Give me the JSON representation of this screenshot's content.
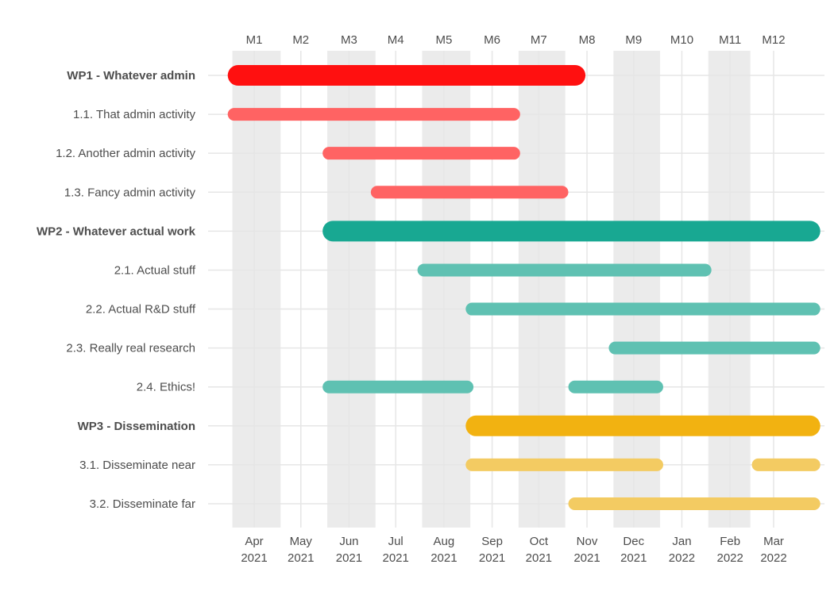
{
  "chart_data": {
    "type": "gantt",
    "title": "",
    "xlabel": "",
    "ylabel": "",
    "x_start": "2021-03-01",
    "x_end": "2022-03-31",
    "months": [
      {
        "label": "M1",
        "center": "2021-04-01",
        "band": [
          "2021-03-18",
          "2021-04-18"
        ]
      },
      {
        "label": "M2",
        "center": "2021-05-01",
        "band": null
      },
      {
        "label": "M3",
        "center": "2021-06-01",
        "band": [
          "2021-05-18",
          "2021-06-18"
        ]
      },
      {
        "label": "M4",
        "center": "2021-07-01",
        "band": null
      },
      {
        "label": "M5",
        "center": "2021-08-01",
        "band": [
          "2021-07-18",
          "2021-08-18"
        ]
      },
      {
        "label": "M6",
        "center": "2021-09-01",
        "band": null
      },
      {
        "label": "M7",
        "center": "2021-10-01",
        "band": [
          "2021-09-18",
          "2021-10-18"
        ]
      },
      {
        "label": "M8",
        "center": "2021-11-01",
        "band": null
      },
      {
        "label": "M9",
        "center": "2021-12-01",
        "band": [
          "2021-11-18",
          "2021-12-18"
        ]
      },
      {
        "label": "M10",
        "center": "2022-01-01",
        "band": null
      },
      {
        "label": "M11",
        "center": "2022-02-01",
        "band": [
          "2022-01-18",
          "2022-02-14"
        ]
      },
      {
        "label": "M12",
        "center": "2022-03-01",
        "band": null
      }
    ],
    "date_ticks": [
      {
        "date": "2021-04-01",
        "month": "Apr",
        "year": "2021"
      },
      {
        "date": "2021-05-01",
        "month": "May",
        "year": "2021"
      },
      {
        "date": "2021-06-01",
        "month": "Jun",
        "year": "2021"
      },
      {
        "date": "2021-07-01",
        "month": "Jul",
        "year": "2021"
      },
      {
        "date": "2021-08-01",
        "month": "Aug",
        "year": "2021"
      },
      {
        "date": "2021-09-01",
        "month": "Sep",
        "year": "2021"
      },
      {
        "date": "2021-10-01",
        "month": "Oct",
        "year": "2021"
      },
      {
        "date": "2021-11-01",
        "month": "Nov",
        "year": "2021"
      },
      {
        "date": "2021-12-01",
        "month": "Dec",
        "year": "2021"
      },
      {
        "date": "2022-01-01",
        "month": "Jan",
        "year": "2022"
      },
      {
        "date": "2022-02-01",
        "month": "Feb",
        "year": "2022"
      },
      {
        "date": "2022-03-01",
        "month": "Mar",
        "year": "2022"
      }
    ],
    "tasks": [
      {
        "label": "WP1 - Whatever admin",
        "wp": true,
        "color": "#ff1010",
        "segments": [
          [
            "2021-03-15",
            "2021-10-31"
          ]
        ]
      },
      {
        "label": "1.1. That admin activity",
        "wp": false,
        "color": "#ff6363",
        "segments": [
          [
            "2021-03-15",
            "2021-09-19"
          ]
        ]
      },
      {
        "label": "1.2. Another admin activity",
        "wp": false,
        "color": "#ff6363",
        "segments": [
          [
            "2021-05-15",
            "2021-09-19"
          ]
        ]
      },
      {
        "label": "1.3. Fancy admin activity",
        "wp": false,
        "color": "#ff6363",
        "segments": [
          [
            "2021-06-15",
            "2021-10-20"
          ]
        ]
      },
      {
        "label": "WP2 - Whatever actual work",
        "wp": true,
        "color": "#18a892",
        "segments": [
          [
            "2021-05-15",
            "2022-03-31"
          ]
        ]
      },
      {
        "label": "2.1. Actual stuff",
        "wp": false,
        "color": "#5fc1b2",
        "segments": [
          [
            "2021-07-15",
            "2022-01-20"
          ]
        ]
      },
      {
        "label": "2.2. Actual R&D stuff",
        "wp": false,
        "color": "#5fc1b2",
        "segments": [
          [
            "2021-08-15",
            "2022-03-31"
          ]
        ]
      },
      {
        "label": "2.3. Really real research",
        "wp": false,
        "color": "#5fc1b2",
        "segments": [
          [
            "2021-11-15",
            "2022-03-31"
          ]
        ]
      },
      {
        "label": "2.4. Ethics!",
        "wp": false,
        "color": "#5fc1b2",
        "segments": [
          [
            "2021-05-15",
            "2021-08-20"
          ],
          [
            "2021-10-20",
            "2021-12-20"
          ]
        ]
      },
      {
        "label": "WP3 - Dissemination",
        "wp": true,
        "color": "#f2b211",
        "segments": [
          [
            "2021-08-15",
            "2022-03-31"
          ]
        ]
      },
      {
        "label": "3.1. Disseminate near",
        "wp": false,
        "color": "#f3cb62",
        "segments": [
          [
            "2021-08-15",
            "2021-12-20"
          ],
          [
            "2022-02-15",
            "2022-03-31"
          ]
        ]
      },
      {
        "label": "3.2. Disseminate far",
        "wp": false,
        "color": "#f3cb62",
        "segments": [
          [
            "2021-10-20",
            "2022-03-31"
          ]
        ]
      }
    ],
    "band_color": "#ebebeb",
    "grid_color": "#e6e6e6"
  }
}
